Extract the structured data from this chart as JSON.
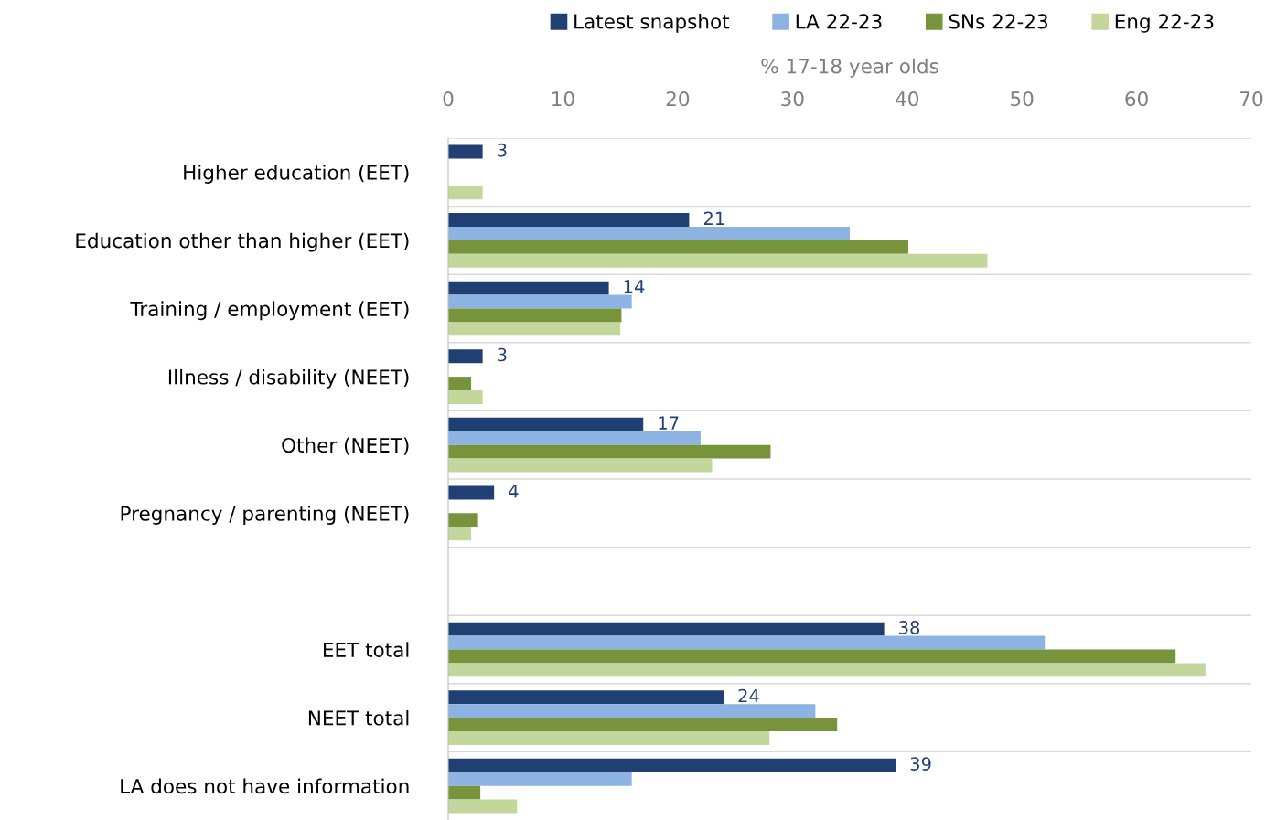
{
  "chart_data": {
    "type": "bar",
    "orientation": "horizontal",
    "xlabel": "% 17-18 year olds",
    "categories": [
      "Higher education (EET)",
      "Education other than higher (EET)",
      "Training / employment (EET)",
      "Illness / disability (NEET)",
      "Other (NEET)",
      "Pregnancy / parenting (NEET)",
      null,
      "EET total",
      "NEET total",
      "LA does not have information"
    ],
    "series": [
      {
        "name": "Latest snapshot",
        "color": "#203f73",
        "values": [
          3,
          21,
          14,
          3,
          17,
          4,
          null,
          38,
          24,
          39
        ],
        "value_labels": [
          "3",
          "21",
          "14",
          "3",
          "17",
          "4",
          null,
          "38",
          "24",
          "39"
        ]
      },
      {
        "name": "LA 22-23",
        "color": "#8db3e2",
        "values": [
          null,
          35,
          16,
          null,
          22,
          null,
          null,
          52,
          32,
          16
        ]
      },
      {
        "name": "SNs 22-23",
        "color": "#77933c",
        "values": [
          null,
          40.1,
          15.1,
          2,
          28.1,
          2.6,
          null,
          63.4,
          33.9,
          2.8
        ]
      },
      {
        "name": "Eng 22-23",
        "color": "#c3d69b",
        "values": [
          3,
          47,
          15,
          3,
          23,
          2,
          null,
          66,
          28,
          6
        ]
      }
    ],
    "xlim": [
      0,
      70
    ],
    "xticks": [
      0,
      10,
      20,
      30,
      40,
      50,
      60,
      70
    ],
    "grid": "y",
    "legend": "top"
  }
}
